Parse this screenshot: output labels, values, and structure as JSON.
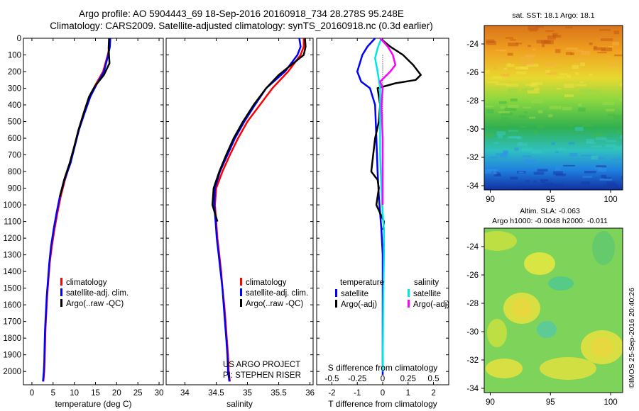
{
  "title": {
    "line1": "Argo profile: AO 5904443_69 18-Sep-2016 20160918_734 28.278S 95.248E",
    "line2": "Climatology: CARS2009. Satellite-adjusted climatology: synTS_20160918.nc (0.3d earlier)"
  },
  "colors": {
    "climatology": "#ff0000",
    "satellite": "#0000ff",
    "argo": "#000000",
    "sal_satellite": "#00e5e5",
    "sal_argo": "#ff00ff"
  },
  "chart_data": [
    {
      "type": "line",
      "panel": "temperature",
      "xlabel": "temperature (deg C)",
      "xlim": [
        -2,
        31
      ],
      "xticks": [
        0,
        5,
        10,
        15,
        20,
        25,
        30
      ],
      "ylim": [
        0,
        2080
      ],
      "yticks": [
        0,
        100,
        200,
        300,
        400,
        500,
        600,
        700,
        800,
        900,
        1000,
        1100,
        1200,
        1300,
        1400,
        1500,
        1600,
        1700,
        1800,
        1900,
        2000
      ],
      "y_reversed": true,
      "legend": [
        "climatology",
        "satellite-adj. clim.",
        "Argo(..raw -QC)"
      ],
      "legend_placement": "bottom-center",
      "series": [
        {
          "name": "climatology",
          "color_key": "climatology",
          "x": [
            18.4,
            18.3,
            17.9,
            16.8,
            15.0,
            13.6,
            12.3,
            11.0,
            10.0,
            9.0,
            7.8,
            6.8,
            6.0,
            5.3,
            4.7,
            4.2,
            3.9,
            3.6,
            3.4,
            3.2,
            3.1,
            3.0,
            2.9,
            2.8,
            2.7
          ],
          "y": [
            0,
            50,
            100,
            200,
            280,
            350,
            450,
            550,
            650,
            750,
            850,
            950,
            1050,
            1150,
            1250,
            1350,
            1450,
            1550,
            1650,
            1750,
            1850,
            1950,
            2000,
            2030,
            2060
          ]
        },
        {
          "name": "satellite-adj. clim.",
          "color_key": "satellite",
          "x": [
            18.5,
            18.4,
            18.0,
            17.0,
            15.2,
            13.8,
            12.4,
            11.1,
            10.1,
            9.1,
            7.7,
            6.6,
            5.8,
            5.1,
            4.5,
            4.1,
            3.8,
            3.5,
            3.3,
            3.1,
            3.0,
            2.9,
            2.8,
            2.7,
            2.6
          ],
          "y": [
            0,
            50,
            100,
            200,
            280,
            350,
            450,
            550,
            650,
            750,
            850,
            950,
            1050,
            1150,
            1250,
            1350,
            1450,
            1550,
            1650,
            1750,
            1850,
            1950,
            2000,
            2030,
            2060
          ]
        },
        {
          "name": "Argo(..raw -QC)",
          "color_key": "argo",
          "x": [
            18.2,
            18.1,
            18.3,
            17.0,
            14.8,
            13.5,
            12.2,
            11.0,
            10.0,
            8.9,
            7.6,
            6.6
          ],
          "y": [
            0,
            60,
            150,
            220,
            290,
            350,
            450,
            550,
            650,
            750,
            850,
            950
          ]
        }
      ]
    },
    {
      "type": "line",
      "panel": "salinity",
      "xlabel": "salinity",
      "xlim": [
        33.7,
        36.05
      ],
      "xticks": [
        34,
        34.5,
        35,
        35.5,
        36
      ],
      "xtick_labels": [
        "34",
        "34.5",
        "35",
        "35.5",
        "36"
      ],
      "ylim": [
        0,
        2080
      ],
      "y_reversed": true,
      "legend": [
        "climatology",
        "satellite-adj. clim.",
        "Argo(..raw -QC)"
      ],
      "legend_placement": "bottom-center",
      "annotation": [
        "US ARGO PROJECT",
        "PI: STEPHEN RISER"
      ],
      "series": [
        {
          "name": "climatology",
          "color_key": "climatology",
          "x": [
            35.9,
            35.9,
            35.85,
            35.65,
            35.4,
            35.2,
            35.0,
            34.85,
            34.72,
            34.6,
            34.5,
            34.48,
            34.5,
            34.52,
            34.55,
            34.58,
            34.6,
            34.63,
            34.65,
            34.67,
            34.69,
            34.7,
            34.71,
            34.72
          ],
          "y": [
            0,
            50,
            100,
            200,
            300,
            400,
            500,
            600,
            700,
            800,
            900,
            1000,
            1100,
            1200,
            1300,
            1400,
            1500,
            1600,
            1700,
            1800,
            1900,
            2000,
            2030,
            2060
          ]
        },
        {
          "name": "satellite-adj. clim.",
          "color_key": "satellite",
          "x": [
            35.83,
            35.85,
            35.8,
            35.6,
            35.3,
            35.12,
            34.95,
            34.8,
            34.68,
            34.56,
            34.48,
            34.47,
            34.49,
            34.51,
            34.54,
            34.57,
            34.6,
            34.62,
            34.64,
            34.66,
            34.68,
            34.69,
            34.7,
            34.71
          ],
          "y": [
            0,
            50,
            100,
            200,
            300,
            400,
            500,
            600,
            700,
            800,
            900,
            1000,
            1100,
            1200,
            1300,
            1400,
            1500,
            1600,
            1700,
            1800,
            1900,
            2000,
            2030,
            2060
          ]
        },
        {
          "name": "Argo(..raw -QC)",
          "color_key": "argo",
          "x": [
            35.92,
            35.93,
            35.9,
            35.5,
            35.3,
            35.1,
            34.93,
            34.78,
            34.66,
            34.55,
            34.46,
            34.44,
            34.48,
            34.52
          ],
          "y": [
            0,
            50,
            100,
            220,
            300,
            400,
            500,
            600,
            700,
            800,
            900,
            1000,
            1050,
            1100
          ]
        }
      ]
    },
    {
      "type": "line",
      "panel": "difference",
      "xlabel": "T difference from climatology",
      "xlabel_top": "S difference from climatology",
      "xlim": [
        -2.6,
        2.6
      ],
      "xticks": [
        -2,
        -1,
        0,
        1,
        2
      ],
      "xtick_labels_top": [
        "-0.5",
        "-0.25",
        "0",
        "0.25",
        "0.5"
      ],
      "ylim": [
        0,
        2080
      ],
      "y_reversed": true,
      "zero_line": "dotted",
      "legend_headers": [
        "temperature",
        "salinity"
      ],
      "legend": [
        "satellite",
        "Argo(-adj)",
        "satellite",
        "Argo(-adj)"
      ],
      "legend_placement": "bottom-center",
      "series": [
        {
          "name": "satellite",
          "color_key": "satellite",
          "x": [
            -0.3,
            -0.6,
            -0.8,
            -0.9,
            -1.0,
            -0.85,
            -0.5,
            -0.3,
            -0.25,
            -0.2,
            -0.15,
            -0.1,
            -0.05,
            0.0,
            0.0,
            0.0,
            0.0
          ],
          "y": [
            0,
            50,
            100,
            150,
            200,
            260,
            300,
            400,
            600,
            800,
            950,
            1050,
            1150,
            1300,
            1500,
            1800,
            2020
          ]
        },
        {
          "name": "Argo(-adj)",
          "color_key": "argo",
          "x": [
            -0.1,
            0.3,
            0.8,
            1.2,
            1.5,
            1.3,
            0.5,
            -0.2,
            -0.1,
            -0.15,
            -0.3,
            -0.45,
            -0.2,
            -0.15,
            -0.25,
            -0.1,
            0.05,
            0.02
          ],
          "y": [
            0,
            50,
            100,
            160,
            220,
            250,
            270,
            300,
            400,
            500,
            600,
            800,
            850,
            900,
            1000,
            1050,
            1100,
            1150
          ]
        },
        {
          "name": "satellite",
          "color_key": "sal_satellite",
          "x": [
            -0.05,
            -0.2,
            -0.3,
            -0.2,
            -0.1,
            -0.1,
            -0.1,
            -0.05,
            0.0,
            0.05,
            0.05,
            0.02,
            0.0
          ],
          "y": [
            0,
            60,
            120,
            200,
            300,
            450,
            700,
            900,
            1050,
            1150,
            1300,
            1600,
            2000
          ]
        },
        {
          "name": "Argo(-adj)",
          "color_key": "sal_argo",
          "x": [
            -0.1,
            0.2,
            0.4,
            0.5,
            0.3,
            -0.1,
            0.0,
            -0.05,
            0.0,
            0.0
          ],
          "y": [
            0,
            50,
            100,
            160,
            200,
            260,
            300,
            400,
            600,
            1000
          ]
        }
      ]
    },
    {
      "type": "heatmap",
      "panel": "sst-map",
      "title": "sat. SST: 18.1  Argo: 18.1",
      "xlim": [
        89.5,
        101
      ],
      "xticks": [
        90,
        95,
        100
      ],
      "ylim": [
        -34.3,
        -22.7
      ],
      "yticks": [
        -24,
        -26,
        -28,
        -30,
        -32,
        -34
      ]
    },
    {
      "type": "heatmap",
      "panel": "sla-map",
      "title_line1": "Altim. SLA: -0.063",
      "title_line2": "Argo h1000: -0.0048 h2000: -0.011",
      "xlim": [
        89.5,
        101
      ],
      "xticks": [
        90,
        95,
        100
      ],
      "ylim": [
        -34.3,
        -22.7
      ],
      "yticks": [
        -24,
        -26,
        -28,
        -30,
        -32,
        -34
      ]
    }
  ],
  "sidebar_stamp": "©IMOS 25-Sep-2016 20:40:26"
}
